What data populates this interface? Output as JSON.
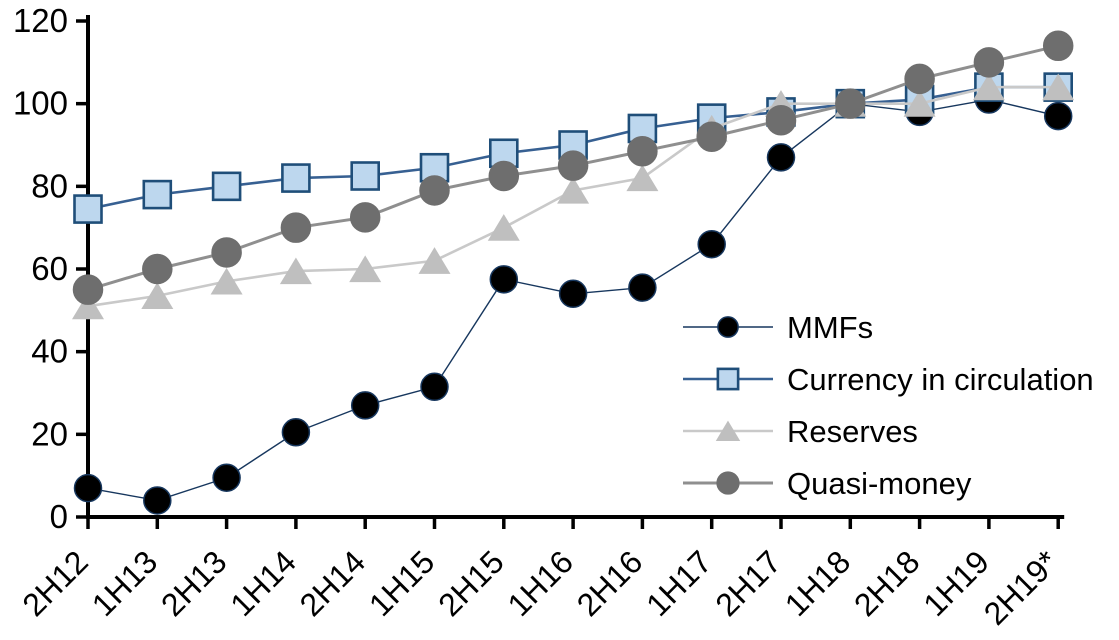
{
  "chart_data": {
    "type": "line",
    "title": "",
    "xlabel": "",
    "ylabel": "",
    "grid": false,
    "axis_color": "#000000",
    "background_color": "#ffffff",
    "ylim": [
      0,
      120
    ],
    "ytick_step": 20,
    "yticks": [
      0,
      20,
      40,
      60,
      80,
      100,
      120
    ],
    "legend_position": "inside-right",
    "categories": [
      "2H12",
      "1H13",
      "2H13",
      "1H14",
      "2H14",
      "1H15",
      "2H15",
      "1H16",
      "2H16",
      "1H17",
      "2H17",
      "1H18",
      "2H18",
      "1H19",
      "2H19*"
    ],
    "series": [
      {
        "name": "MMFs",
        "marker": "circle",
        "line_color": "#17375E",
        "line_width": 1.4,
        "marker_fill": "#000000",
        "marker_stroke": "#17375E",
        "marker_radius": 13.5,
        "values": [
          7,
          4,
          9.5,
          20.5,
          27,
          31.5,
          57.5,
          54,
          55.5,
          66,
          87,
          100,
          98,
          101,
          97
        ]
      },
      {
        "name": "Currency in circulation",
        "marker": "square",
        "line_color": "#376092",
        "line_width": 2.6,
        "marker_fill": "#BDD7EE",
        "marker_stroke": "#1F4E79",
        "marker_radius": 13.5,
        "values": [
          74.5,
          78,
          80,
          82,
          82.5,
          84.5,
          88,
          90,
          94,
          96.5,
          98,
          100,
          101,
          104,
          104
        ]
      },
      {
        "name": "Reserves",
        "marker": "triangle",
        "line_color": "#C9C9C9",
        "line_width": 2.6,
        "marker_fill": "#BFBFBF",
        "marker_stroke": "#BFBFBF",
        "marker_radius": 14,
        "values": [
          51,
          53.5,
          57,
          59.5,
          60,
          62,
          70,
          79,
          82,
          94,
          100,
          100,
          100,
          104,
          104
        ]
      },
      {
        "name": "Quasi-money",
        "marker": "circle",
        "line_color": "#8F8F8F",
        "line_width": 3,
        "marker_fill": "#6E6E6E",
        "marker_stroke": "#6E6E6E",
        "marker_radius": 14.5,
        "values": [
          55,
          60,
          64,
          70,
          72.5,
          79,
          82.5,
          85,
          88.5,
          92,
          96,
          100,
          106,
          110,
          114
        ]
      }
    ]
  }
}
